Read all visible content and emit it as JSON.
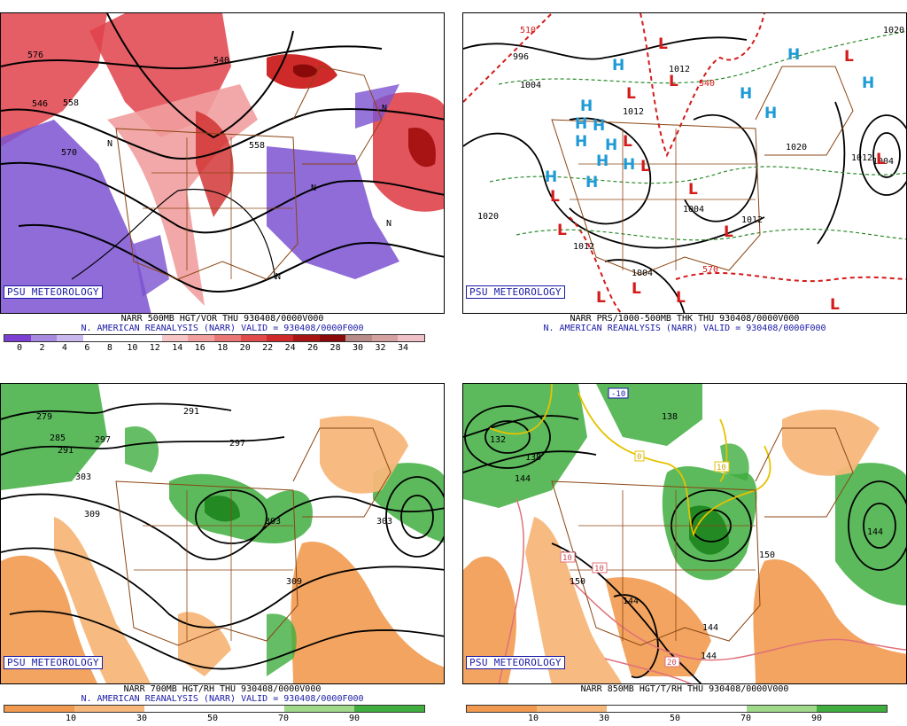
{
  "badge": "PSU METEOROLOGY",
  "colors": {
    "vort_neg": "#7b52d1",
    "vort_pos": "#e0424a",
    "dry": "#f2a65a",
    "moist": "#3fae3f",
    "border": "#8b4513",
    "contour": "#000000",
    "high": "#1e9ad6",
    "low": "#d41a1a"
  },
  "panels": [
    {
      "id": "p1",
      "title_line1": "NARR 500MB HGT/VOR THU 930408/0000V000",
      "title_line2": "N. AMERICAN REANALYSIS (NARR) VALID = 930408/0000F000",
      "contour_labels": [
        "576",
        "558",
        "540",
        "570",
        "546",
        "558",
        "N",
        "N",
        "N",
        "N",
        "N"
      ],
      "colorbar": {
        "colors": [
          "#7c3fd1",
          "#a78ae0",
          "#c8b8ee",
          "#ffffff",
          "#ffffff",
          "#ffffff",
          "#f6c6c6",
          "#f19f9f",
          "#ea7676",
          "#e04b4b",
          "#cf2a2a",
          "#a81414",
          "#8a0a0a",
          "#b88a8a",
          "#d4a0a0",
          "#f0c0c8"
        ],
        "ticks": [
          "0",
          "2",
          "4",
          "6",
          "8",
          "10",
          "12",
          "14",
          "16",
          "18",
          "20",
          "22",
          "24",
          "26",
          "28",
          "30",
          "32",
          "34"
        ]
      }
    },
    {
      "id": "p2",
      "title_line1": "NARR PRS/1000-500MB THK THU 930408/0000V000",
      "title_line2": "N. AMERICAN REANALYSIS (NARR) VALID = 930408/0000F000",
      "contour_labels": [
        "996",
        "1004",
        "1012",
        "540",
        "1012",
        "1020",
        "1020",
        "1004",
        "1012",
        "1004",
        "1012",
        "1004",
        "570",
        "1012",
        "1020",
        "510"
      ],
      "highs": [
        "H",
        "H",
        "H",
        "H",
        "H",
        "H",
        "H",
        "H",
        "H",
        "H",
        "H",
        "H",
        "H",
        "H"
      ],
      "lows": [
        "L",
        "L",
        "L",
        "L",
        "L",
        "L",
        "L",
        "L",
        "L",
        "L",
        "L",
        "L",
        "L",
        "L",
        "L"
      ]
    },
    {
      "id": "p3",
      "title_line1": "NARR 700MB HGT/RH THU 930408/0000V000",
      "title_line2": "N. AMERICAN REANALYSIS (NARR) VALID = 930408/0000F000",
      "contour_labels": [
        "279",
        "285",
        "291",
        "297",
        "303",
        "291",
        "297",
        "309",
        "303",
        "309",
        "303"
      ],
      "colorbar": {
        "colors": [
          "#f19a4f",
          "#f7b77a",
          "#ffffff",
          "#ffffff",
          "#9fd98a",
          "#3fae3f"
        ],
        "ticks": [
          "10",
          "30",
          "50",
          "70",
          "90"
        ]
      }
    },
    {
      "id": "p4",
      "title_line1": "NARR 850MB HGT/T/RH THU 930408/0000V000",
      "title_line2": "",
      "contour_labels": [
        "132",
        "138",
        "144",
        "138",
        "150",
        "150",
        "144",
        "150",
        "144",
        "144",
        "144",
        "-10",
        "0",
        "10",
        "10",
        "10",
        "20"
      ],
      "colorbar": {
        "colors": [
          "#f19a4f",
          "#f7b77a",
          "#ffffff",
          "#ffffff",
          "#9fd98a",
          "#3fae3f"
        ],
        "ticks": [
          "10",
          "30",
          "50",
          "70",
          "90"
        ]
      }
    }
  ]
}
